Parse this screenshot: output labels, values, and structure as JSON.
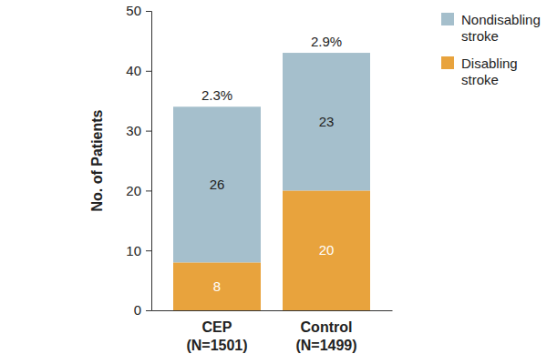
{
  "chart_data": {
    "type": "bar",
    "stacked": true,
    "data_labels": true,
    "grid": false,
    "legend": "top-right",
    "y_label": "No. of Patients",
    "categories": [
      "CEP\n(N=1501)",
      "Control\n(N=1499)"
    ],
    "series": [
      {
        "name": "Disabling\nstroke",
        "color": "#e8a33d",
        "values": [
          8,
          20
        ]
      },
      {
        "name": "Nondisabling\nstroke",
        "color": "#a5bfcc",
        "values": [
          26,
          23
        ]
      }
    ],
    "annotations": [
      "2.3%",
      "2.9%"
    ],
    "ylim": [
      0,
      50
    ],
    "yticks": [
      0,
      10,
      20,
      30,
      40,
      50
    ]
  }
}
